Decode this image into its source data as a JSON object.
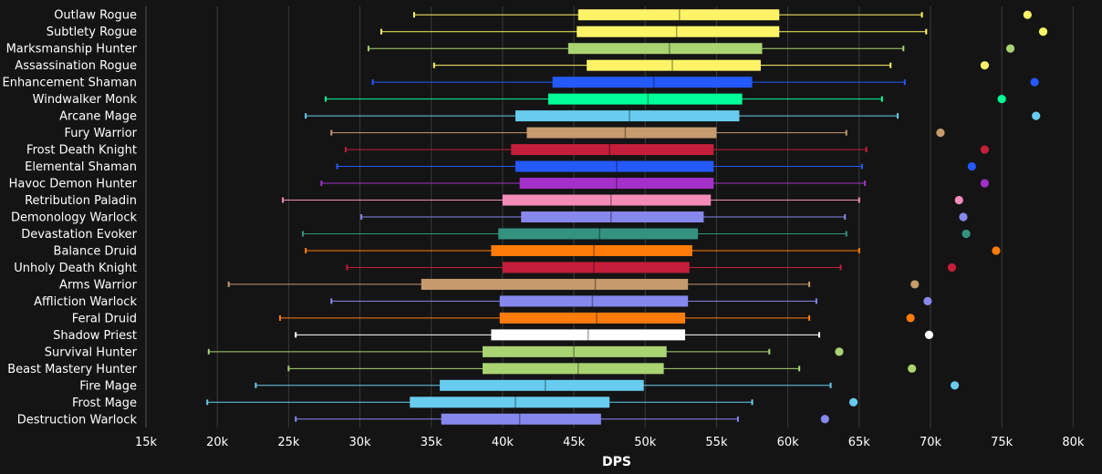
{
  "chart_data": {
    "type": "box",
    "xlabel": "DPS",
    "ylabel": "",
    "title": "",
    "xlim": [
      15000,
      81000
    ],
    "xticks": [
      15000,
      20000,
      25000,
      30000,
      35000,
      40000,
      45000,
      50000,
      55000,
      60000,
      65000,
      70000,
      75000,
      80000
    ],
    "xtick_labels": [
      "15k",
      "20k",
      "25k",
      "30k",
      "35k",
      "40k",
      "45k",
      "50k",
      "55k",
      "60k",
      "65k",
      "70k",
      "75k",
      "80k"
    ],
    "grid": "vertical",
    "series": [
      {
        "name": "Outlaw Rogue",
        "color": "#FFF468",
        "min": 33800,
        "q1": 45300,
        "median": 52400,
        "q3": 59400,
        "max": 69400,
        "outlier": 76800
      },
      {
        "name": "Subtlety Rogue",
        "color": "#FFF468",
        "min": 31500,
        "q1": 45200,
        "median": 52200,
        "q3": 59400,
        "max": 69700,
        "outlier": 77900
      },
      {
        "name": "Marksmanship Hunter",
        "color": "#AAD372",
        "min": 30600,
        "q1": 44600,
        "median": 51700,
        "q3": 58200,
        "max": 68100,
        "outlier": 75600
      },
      {
        "name": "Assassination Rogue",
        "color": "#FFF468",
        "min": 35200,
        "q1": 45900,
        "median": 51900,
        "q3": 58100,
        "max": 67200,
        "outlier": 73800
      },
      {
        "name": "Enhancement Shaman",
        "color": "#2459FF",
        "min": 30900,
        "q1": 43500,
        "median": 50600,
        "q3": 57500,
        "max": 68200,
        "outlier": 77300
      },
      {
        "name": "Windwalker Monk",
        "color": "#00FF98",
        "min": 27600,
        "q1": 43200,
        "median": 50200,
        "q3": 56800,
        "max": 66600,
        "outlier": 75000
      },
      {
        "name": "Arcane Mage",
        "color": "#68CCEF",
        "min": 26200,
        "q1": 40900,
        "median": 48900,
        "q3": 56600,
        "max": 67700,
        "outlier": 77400
      },
      {
        "name": "Fury Warrior",
        "color": "#C69B6D",
        "min": 28000,
        "q1": 41700,
        "median": 48600,
        "q3": 55000,
        "max": 64100,
        "outlier": 70700
      },
      {
        "name": "Frost Death Knight",
        "color": "#C41E3A",
        "min": 29000,
        "q1": 40600,
        "median": 47500,
        "q3": 54800,
        "max": 65500,
        "outlier": 73800
      },
      {
        "name": "Elemental Shaman",
        "color": "#2459FF",
        "min": 28400,
        "q1": 40900,
        "median": 48000,
        "q3": 54800,
        "max": 65200,
        "outlier": 72900
      },
      {
        "name": "Havoc Demon Hunter",
        "color": "#A330C9",
        "min": 27300,
        "q1": 41200,
        "median": 48000,
        "q3": 54800,
        "max": 65400,
        "outlier": 73800
      },
      {
        "name": "Retribution Paladin",
        "color": "#F48CBA",
        "min": 24600,
        "q1": 40000,
        "median": 47600,
        "q3": 54600,
        "max": 65000,
        "outlier": 72000
      },
      {
        "name": "Demonology Warlock",
        "color": "#8788EE",
        "min": 30100,
        "q1": 41300,
        "median": 47600,
        "q3": 54100,
        "max": 64000,
        "outlier": 72300
      },
      {
        "name": "Devastation Evoker",
        "color": "#33937F",
        "min": 26000,
        "q1": 39700,
        "median": 46800,
        "q3": 53700,
        "max": 64100,
        "outlier": 72500
      },
      {
        "name": "Balance Druid",
        "color": "#FF7C0A",
        "min": 26200,
        "q1": 39200,
        "median": 46400,
        "q3": 53300,
        "max": 65000,
        "outlier": 74600
      },
      {
        "name": "Unholy Death Knight",
        "color": "#C41E3A",
        "min": 29100,
        "q1": 40000,
        "median": 46400,
        "q3": 53100,
        "max": 63700,
        "outlier": 71500
      },
      {
        "name": "Arms Warrior",
        "color": "#C69B6D",
        "min": 20800,
        "q1": 34300,
        "median": 46500,
        "q3": 53000,
        "max": 61500,
        "outlier": 68900
      },
      {
        "name": "Affliction Warlock",
        "color": "#8788EE",
        "min": 28000,
        "q1": 39800,
        "median": 46300,
        "q3": 53000,
        "max": 62000,
        "outlier": 69800
      },
      {
        "name": "Feral Druid",
        "color": "#FF7C0A",
        "min": 24400,
        "q1": 39800,
        "median": 46600,
        "q3": 52800,
        "max": 61500,
        "outlier": 68600
      },
      {
        "name": "Shadow Priest",
        "color": "#FFFFFF",
        "min": 25500,
        "q1": 39200,
        "median": 46000,
        "q3": 52800,
        "max": 62200,
        "outlier": 69900
      },
      {
        "name": "Survival Hunter",
        "color": "#AAD372",
        "min": 19400,
        "q1": 38600,
        "median": 45000,
        "q3": 51500,
        "max": 58700,
        "outlier": 63600
      },
      {
        "name": "Beast Mastery Hunter",
        "color": "#AAD372",
        "min": 25000,
        "q1": 38600,
        "median": 45300,
        "q3": 51300,
        "max": 60800,
        "outlier": 68700
      },
      {
        "name": "Fire Mage",
        "color": "#68CCEF",
        "min": 22700,
        "q1": 35600,
        "median": 43000,
        "q3": 49900,
        "max": 63000,
        "outlier": 71700
      },
      {
        "name": "Frost Mage",
        "color": "#68CCEF",
        "min": 19300,
        "q1": 33500,
        "median": 40900,
        "q3": 47500,
        "max": 57500,
        "outlier": 64600
      },
      {
        "name": "Destruction Warlock",
        "color": "#8788EE",
        "min": 25500,
        "q1": 35700,
        "median": 41200,
        "q3": 46900,
        "max": 56500,
        "outlier": 62600
      }
    ]
  }
}
